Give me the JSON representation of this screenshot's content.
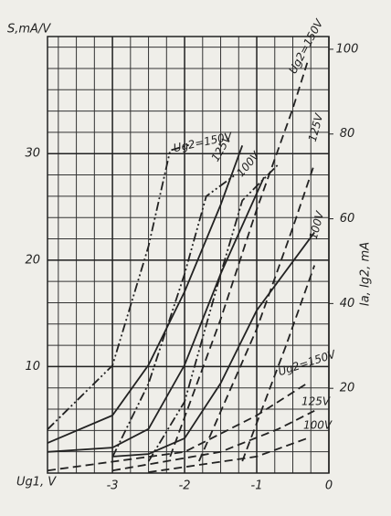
{
  "chart_data": {
    "type": "line",
    "y_label": "S,mA/V",
    "y2_label": "Ia, Ig2, mA",
    "x_label": "Ug1, V",
    "xlim": [
      -3.9,
      0
    ],
    "xticks": [
      -3,
      -2,
      -1,
      0
    ],
    "ylim": [
      0,
      41
    ],
    "yticks": [
      10,
      20,
      30
    ],
    "y2lim": [
      0,
      103
    ],
    "y2ticks": [
      20,
      40,
      60,
      80,
      100
    ],
    "grid": true,
    "series": [
      {
        "style": "dashdot",
        "color": "#222",
        "axis": "y",
        "x": [
          -3.9,
          -3,
          -2.5,
          -2.2,
          -1.9
        ],
        "values": [
          4.1,
          10.1,
          21.3,
          30.3,
          30.9
        ]
      },
      {
        "style": "dashdot",
        "color": "#222",
        "axis": "y",
        "x": [
          -3,
          -2.5,
          -2,
          -1.7,
          -1.3
        ],
        "values": [
          1.5,
          8.4,
          18.7,
          26,
          28
        ]
      },
      {
        "style": "dashdot",
        "color": "#222",
        "axis": "y",
        "x": [
          -2.5,
          -2,
          -1.5,
          -1.2,
          -0.7
        ],
        "values": [
          1.1,
          6.7,
          18.7,
          25.6,
          29
        ]
      },
      {
        "style": "solid",
        "color": "#222",
        "axis": "y2",
        "x": [
          -3.9,
          -3,
          -2.5,
          -2,
          -1.5,
          -1.2
        ],
        "values": [
          7.1,
          13.6,
          25.5,
          42.8,
          63.3,
          77.3
        ]
      },
      {
        "style": "solid",
        "color": "#222",
        "axis": "y2",
        "x": [
          -3.9,
          -3,
          -2.5,
          -2,
          -1.5,
          -0.9
        ],
        "values": [
          5,
          6,
          10.4,
          25.5,
          47,
          69.8
        ]
      },
      {
        "style": "solid",
        "color": "#222",
        "axis": "y2",
        "x": [
          -3,
          -2.5,
          -2,
          -1.5,
          -1,
          -0.2
        ],
        "values": [
          3.9,
          4.5,
          8.2,
          21.2,
          38.4,
          56.8
        ]
      },
      {
        "style": "dashed",
        "color": "#222",
        "axis": "y2",
        "x": [
          -2.2,
          -1.5,
          -1,
          -0.5,
          -0.3
        ],
        "values": [
          3.9,
          36.3,
          62.2,
          86,
          96.8
        ]
      },
      {
        "style": "dashed",
        "color": "#222",
        "axis": "y2",
        "x": [
          -1.8,
          -1,
          -0.5,
          -0.2
        ],
        "values": [
          2.8,
          34,
          57.9,
          73
        ]
      },
      {
        "style": "dashed",
        "color": "#222",
        "axis": "y2",
        "x": [
          -1.2,
          -0.6,
          -0.2
        ],
        "values": [
          2.8,
          29.8,
          49
        ]
      },
      {
        "style": "dashed",
        "color": "#222",
        "axis": "y2",
        "x": [
          -3.9,
          -2,
          -1,
          -0.3
        ],
        "values": [
          0.6,
          5,
          13.6,
          21.2
        ]
      },
      {
        "style": "dashed",
        "color": "#222",
        "axis": "y2",
        "x": [
          -3,
          -1.5,
          -0.7,
          -0.2
        ],
        "values": [
          0.6,
          5,
          10.4,
          14.7
        ]
      },
      {
        "style": "dashed",
        "color": "#222",
        "axis": "y2",
        "x": [
          -2.5,
          -1,
          -0.3
        ],
        "values": [
          0.2,
          3.9,
          8.2
        ]
      }
    ],
    "annotations": [
      "Ug2=150V",
      "Ug2=150V",
      "125V",
      "100V",
      "125V",
      "100V",
      "Ug2=150V",
      "125V",
      "100V"
    ]
  }
}
